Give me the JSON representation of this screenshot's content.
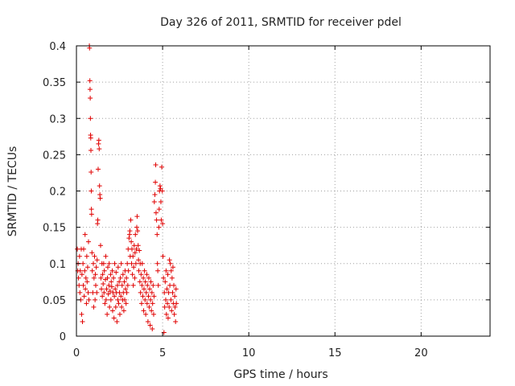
{
  "chart_data": {
    "type": "scatter",
    "title": "Day 326 of 2011, SRMTID for receiver pdel",
    "xlabel": "GPS time / hours",
    "ylabel": "SRMTID / TECUs",
    "xlim": [
      0,
      24
    ],
    "ylim": [
      0,
      0.4
    ],
    "xticks": [
      0,
      5,
      10,
      15,
      20
    ],
    "yticks": [
      0,
      0.05,
      0.1,
      0.15,
      0.2,
      0.25,
      0.3,
      0.35,
      0.4
    ],
    "xtick_labels": [
      "0",
      "5",
      "10",
      "15",
      "20"
    ],
    "ytick_labels": [
      "0",
      "0.05",
      "0.1",
      "0.15",
      "0.2",
      "0.25",
      "0.3",
      "0.35",
      "0.4"
    ],
    "grid": true,
    "marker": "+",
    "color": "#e00000",
    "series": [
      {
        "name": "SRMTID",
        "points": [
          [
            0.05,
            0.12
          ],
          [
            0.08,
            0.09
          ],
          [
            0.1,
            0.1
          ],
          [
            0.12,
            0.08
          ],
          [
            0.15,
            0.07
          ],
          [
            0.18,
            0.11
          ],
          [
            0.2,
            0.06
          ],
          [
            0.22,
            0.09
          ],
          [
            0.25,
            0.05
          ],
          [
            0.28,
            0.12
          ],
          [
            0.3,
            0.03
          ],
          [
            0.32,
            0.085
          ],
          [
            0.35,
            0.02
          ],
          [
            0.38,
            0.1
          ],
          [
            0.4,
            0.07
          ],
          [
            0.42,
            0.12
          ],
          [
            0.45,
            0.055
          ],
          [
            0.48,
            0.09
          ],
          [
            0.5,
            0.14
          ],
          [
            0.52,
            0.065
          ],
          [
            0.55,
            0.08
          ],
          [
            0.58,
            0.045
          ],
          [
            0.6,
            0.11
          ],
          [
            0.62,
            0.075
          ],
          [
            0.65,
            0.095
          ],
          [
            0.68,
            0.06
          ],
          [
            0.7,
            0.13
          ],
          [
            0.72,
            0.05
          ],
          [
            0.75,
            0.4
          ],
          [
            0.76,
            0.397
          ],
          [
            0.78,
            0.352
          ],
          [
            0.79,
            0.34
          ],
          [
            0.8,
            0.328
          ],
          [
            0.81,
            0.3
          ],
          [
            0.82,
            0.277
          ],
          [
            0.83,
            0.273
          ],
          [
            0.84,
            0.256
          ],
          [
            0.85,
            0.226
          ],
          [
            0.86,
            0.2
          ],
          [
            0.87,
            0.175
          ],
          [
            0.88,
            0.168
          ],
          [
            0.9,
            0.115
          ],
          [
            0.92,
            0.09
          ],
          [
            0.95,
            0.06
          ],
          [
            0.98,
            0.1
          ],
          [
            1.0,
            0.04
          ],
          [
            1.02,
            0.08
          ],
          [
            1.05,
            0.11
          ],
          [
            1.08,
            0.05
          ],
          [
            1.1,
            0.085
          ],
          [
            1.12,
            0.07
          ],
          [
            1.15,
            0.095
          ],
          [
            1.18,
            0.06
          ],
          [
            1.2,
            0.105
          ],
          [
            1.22,
            0.155
          ],
          [
            1.24,
            0.16
          ],
          [
            1.26,
            0.23
          ],
          [
            1.28,
            0.265
          ],
          [
            1.3,
            0.27
          ],
          [
            1.32,
            0.258
          ],
          [
            1.34,
            0.207
          ],
          [
            1.36,
            0.195
          ],
          [
            1.38,
            0.19
          ],
          [
            1.4,
            0.125
          ],
          [
            1.42,
            0.08
          ],
          [
            1.45,
            0.065
          ],
          [
            1.48,
            0.1
          ],
          [
            1.5,
            0.055
          ],
          [
            1.52,
            0.085
          ],
          [
            1.55,
            0.072
          ],
          [
            1.58,
            0.1
          ],
          [
            1.6,
            0.06
          ],
          [
            1.62,
            0.09
          ],
          [
            1.65,
            0.045
          ],
          [
            1.68,
            0.078
          ],
          [
            1.7,
            0.11
          ],
          [
            1.72,
            0.05
          ],
          [
            1.75,
            0.065
          ],
          [
            1.78,
            0.03
          ],
          [
            1.8,
            0.08
          ],
          [
            1.82,
            0.095
          ],
          [
            1.85,
            0.058
          ],
          [
            1.88,
            0.07
          ],
          [
            1.9,
            0.1
          ],
          [
            1.92,
            0.04
          ],
          [
            1.95,
            0.062
          ],
          [
            1.98,
            0.085
          ],
          [
            2.0,
            0.05
          ],
          [
            2.02,
            0.075
          ],
          [
            2.05,
            0.068
          ],
          [
            2.08,
            0.09
          ],
          [
            2.1,
            0.035
          ],
          [
            2.12,
            0.06
          ],
          [
            2.15,
            0.08
          ],
          [
            2.18,
            0.025
          ],
          [
            2.2,
            0.055
          ],
          [
            2.22,
            0.1
          ],
          [
            2.25,
            0.065
          ],
          [
            2.28,
            0.04
          ],
          [
            2.3,
            0.088
          ],
          [
            2.32,
            0.06
          ],
          [
            2.35,
            0.02
          ],
          [
            2.38,
            0.07
          ],
          [
            2.4,
            0.05
          ],
          [
            2.42,
            0.095
          ],
          [
            2.45,
            0.045
          ],
          [
            2.48,
            0.075
          ],
          [
            2.5,
            0.06
          ],
          [
            2.52,
            0.03
          ],
          [
            2.55,
            0.08
          ],
          [
            2.58,
            0.055
          ],
          [
            2.6,
            0.1
          ],
          [
            2.62,
            0.04
          ],
          [
            2.65,
            0.07
          ],
          [
            2.68,
            0.05
          ],
          [
            2.7,
            0.085
          ],
          [
            2.72,
            0.06
          ],
          [
            2.75,
            0.035
          ],
          [
            2.78,
            0.075
          ],
          [
            2.8,
            0.05
          ],
          [
            2.82,
            0.09
          ],
          [
            2.85,
            0.065
          ],
          [
            2.88,
            0.045
          ],
          [
            2.9,
            0.08
          ],
          [
            2.92,
            0.06
          ],
          [
            2.95,
            0.1
          ],
          [
            2.98,
            0.07
          ],
          [
            3.0,
            0.12
          ],
          [
            3.02,
            0.09
          ],
          [
            3.05,
            0.135
          ],
          [
            3.08,
            0.14
          ],
          [
            3.1,
            0.145
          ],
          [
            3.12,
            0.11
          ],
          [
            3.15,
            0.16
          ],
          [
            3.18,
            0.13
          ],
          [
            3.2,
            0.1
          ],
          [
            3.22,
            0.12
          ],
          [
            3.25,
            0.085
          ],
          [
            3.28,
            0.11
          ],
          [
            3.3,
            0.07
          ],
          [
            3.32,
            0.095
          ],
          [
            3.35,
            0.125
          ],
          [
            3.38,
            0.08
          ],
          [
            3.4,
            0.115
          ],
          [
            3.42,
            0.14
          ],
          [
            3.45,
            0.1
          ],
          [
            3.48,
            0.12
          ],
          [
            3.5,
            0.15
          ],
          [
            3.52,
            0.165
          ],
          [
            3.55,
            0.145
          ],
          [
            3.58,
            0.125
          ],
          [
            3.6,
            0.105
          ],
          [
            3.62,
            0.09
          ],
          [
            3.65,
            0.118
          ],
          [
            3.68,
            0.075
          ],
          [
            3.7,
            0.1
          ],
          [
            3.72,
            0.06
          ],
          [
            3.75,
            0.085
          ],
          [
            3.78,
            0.045
          ],
          [
            3.8,
            0.07
          ],
          [
            3.82,
            0.1
          ],
          [
            3.85,
            0.055
          ],
          [
            3.88,
            0.08
          ],
          [
            3.9,
            0.035
          ],
          [
            3.92,
            0.065
          ],
          [
            3.95,
            0.09
          ],
          [
            3.98,
            0.05
          ],
          [
            4.0,
            0.075
          ],
          [
            4.02,
            0.03
          ],
          [
            4.05,
            0.06
          ],
          [
            4.08,
            0.085
          ],
          [
            4.1,
            0.045
          ],
          [
            4.12,
            0.07
          ],
          [
            4.15,
            0.02
          ],
          [
            4.18,
            0.055
          ],
          [
            4.2,
            0.08
          ],
          [
            4.22,
            0.04
          ],
          [
            4.25,
            0.065
          ],
          [
            4.28,
            0.015
          ],
          [
            4.3,
            0.05
          ],
          [
            4.32,
            0.075
          ],
          [
            4.35,
            0.035
          ],
          [
            4.38,
            0.06
          ],
          [
            4.4,
            0.01
          ],
          [
            4.42,
            0.045
          ],
          [
            4.45,
            0.07
          ],
          [
            4.48,
            0.03
          ],
          [
            4.5,
            0.055
          ],
          [
            4.52,
            0.185
          ],
          [
            4.55,
            0.195
          ],
          [
            4.58,
            0.212
          ],
          [
            4.6,
            0.236
          ],
          [
            4.62,
            0.17
          ],
          [
            4.65,
            0.16
          ],
          [
            4.68,
            0.14
          ],
          [
            4.7,
            0.1
          ],
          [
            4.72,
            0.09
          ],
          [
            4.75,
            0.07
          ],
          [
            4.78,
            0.15
          ],
          [
            4.8,
            0.175
          ],
          [
            4.82,
            0.2
          ],
          [
            4.85,
            0.207
          ],
          [
            4.88,
            0.203
          ],
          [
            4.9,
            0.185
          ],
          [
            4.92,
            0.16
          ],
          [
            4.95,
            0.233
          ],
          [
            4.98,
            0.2
          ],
          [
            5.0,
            0.155
          ],
          [
            5.02,
            0.11
          ],
          [
            5.05,
            0.08
          ],
          [
            5.08,
            0.005
          ],
          [
            5.1,
            0.06
          ],
          [
            5.12,
            0.04
          ],
          [
            5.15,
            0.075
          ],
          [
            5.18,
            0.05
          ],
          [
            5.2,
            0.09
          ],
          [
            5.22,
            0.03
          ],
          [
            5.25,
            0.065
          ],
          [
            5.28,
            0.045
          ],
          [
            5.3,
            0.085
          ],
          [
            5.32,
            0.025
          ],
          [
            5.35,
            0.06
          ],
          [
            5.38,
            0.04
          ],
          [
            5.4,
            0.105
          ],
          [
            5.42,
            0.07
          ],
          [
            5.45,
            0.1
          ],
          [
            5.48,
            0.05
          ],
          [
            5.5,
            0.09
          ],
          [
            5.52,
            0.035
          ],
          [
            5.55,
            0.08
          ],
          [
            5.58,
            0.06
          ],
          [
            5.6,
            0.095
          ],
          [
            5.62,
            0.045
          ],
          [
            5.65,
            0.07
          ],
          [
            5.68,
            0.03
          ],
          [
            5.7,
            0.055
          ],
          [
            5.72,
            0.04
          ],
          [
            5.75,
            0.02
          ],
          [
            5.78,
            0.065
          ],
          [
            5.8,
            0.045
          ]
        ]
      }
    ]
  }
}
